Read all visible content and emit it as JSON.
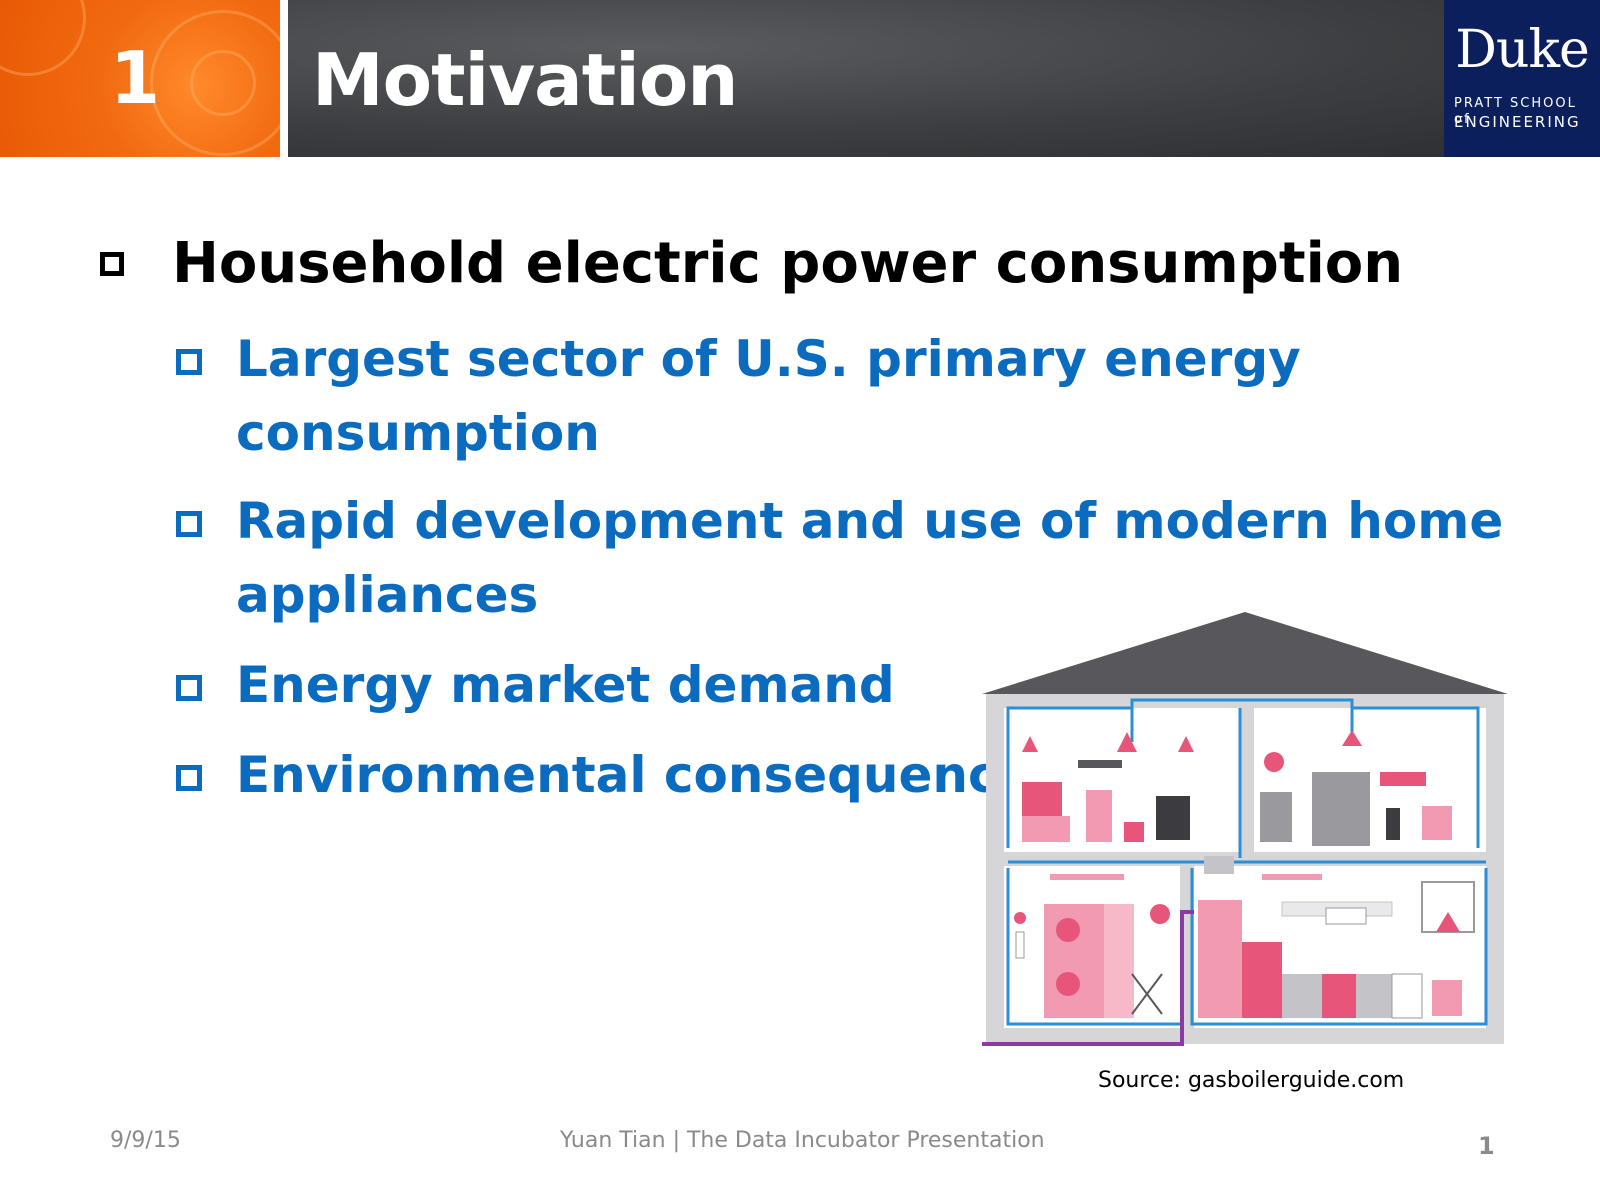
{
  "header": {
    "section_number": "1",
    "title": "Motivation",
    "logo": {
      "name": "Duke",
      "line1": "PRATT SCHOOL of",
      "line2": "ENGINEERING"
    }
  },
  "bullets": {
    "main": "Household electric power consumption",
    "sub": [
      {
        "line1": "Largest sector of U.S. primary energy",
        "line2": "consumption"
      },
      {
        "line1": "Rapid development and use of modern home",
        "line2": "appliances"
      },
      {
        "line1": "Energy market demand",
        "line2": ""
      },
      {
        "line1": "Environmental consequence",
        "line2": ""
      }
    ]
  },
  "figure": {
    "source": "Source: gasboilerguide.com"
  },
  "footer": {
    "date": "9/9/15",
    "presenter": "Yuan Tian  |  The Data Incubator Presentation",
    "page": "1"
  },
  "colors": {
    "orange": "#f26a10",
    "dark_band": "#3c3e41",
    "duke_navy": "#0b1f5c",
    "bullet_blue": "#0a6bbf",
    "appliance_pink": "#e8557a",
    "pipe_blue": "#2a8fd6"
  }
}
